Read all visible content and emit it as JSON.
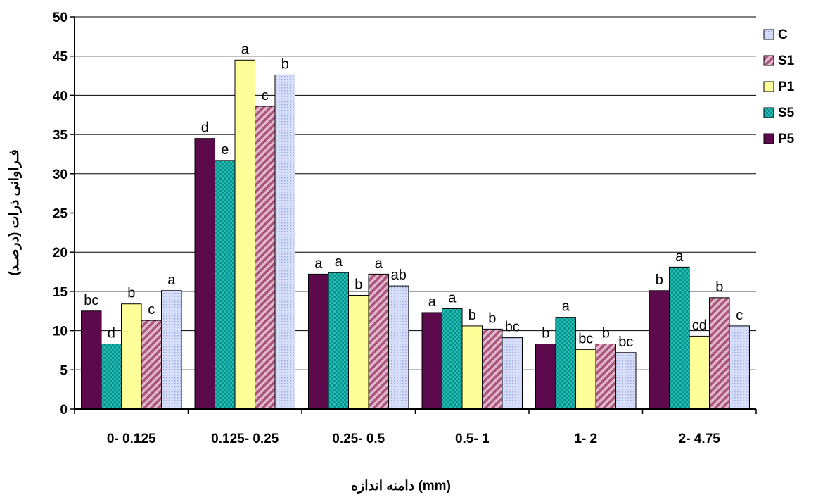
{
  "chart_data": {
    "type": "bar",
    "title": "",
    "xlabel": "دامنه اندازه (mm)",
    "ylabel": "فـراوانی ذرات (درصـد)",
    "ylim": [
      0,
      50
    ],
    "yticks": [
      0,
      5,
      10,
      15,
      20,
      25,
      30,
      35,
      40,
      45,
      50
    ],
    "grid": true,
    "legend_position": "right",
    "categories": [
      "0- 0.125",
      "0.125- 0.25",
      "0.25- 0.5",
      "0.5- 1",
      "1- 2",
      "2- 4.75"
    ],
    "series": [
      {
        "name": "P5",
        "color": "#5c0a4c",
        "pattern": "solid",
        "values": [
          12.5,
          34.5,
          17.2,
          12.3,
          8.3,
          15.1
        ],
        "labels": [
          "bc",
          "d",
          "a",
          "a",
          "b",
          "b"
        ]
      },
      {
        "name": "S5",
        "color": "#1fbfb8",
        "pattern": "checker",
        "values": [
          8.3,
          31.7,
          17.4,
          12.8,
          11.7,
          18.1
        ],
        "labels": [
          "d",
          "e",
          "a",
          "a",
          "a",
          "a"
        ]
      },
      {
        "name": "P1",
        "color": "#ffff99",
        "pattern": "solid",
        "values": [
          13.4,
          44.5,
          14.5,
          10.6,
          7.6,
          9.3
        ],
        "labels": [
          "b",
          "a",
          "b",
          "b",
          "bc",
          "cd"
        ]
      },
      {
        "name": "S1",
        "color": "#c27a9c",
        "pattern": "diagonal",
        "values": [
          11.3,
          38.6,
          17.2,
          10.2,
          8.3,
          14.2
        ],
        "labels": [
          "c",
          "c",
          "a",
          "b",
          "b",
          "b"
        ]
      },
      {
        "name": "C",
        "color": "#c9d3f5",
        "pattern": "dots",
        "values": [
          15.1,
          42.6,
          15.7,
          9.1,
          7.2,
          10.6
        ],
        "labels": [
          "a",
          "b",
          "ab",
          "bc",
          "bc",
          "c"
        ]
      }
    ],
    "legend_order": [
      "C",
      "S1",
      "P1",
      "S5",
      "P5"
    ]
  }
}
